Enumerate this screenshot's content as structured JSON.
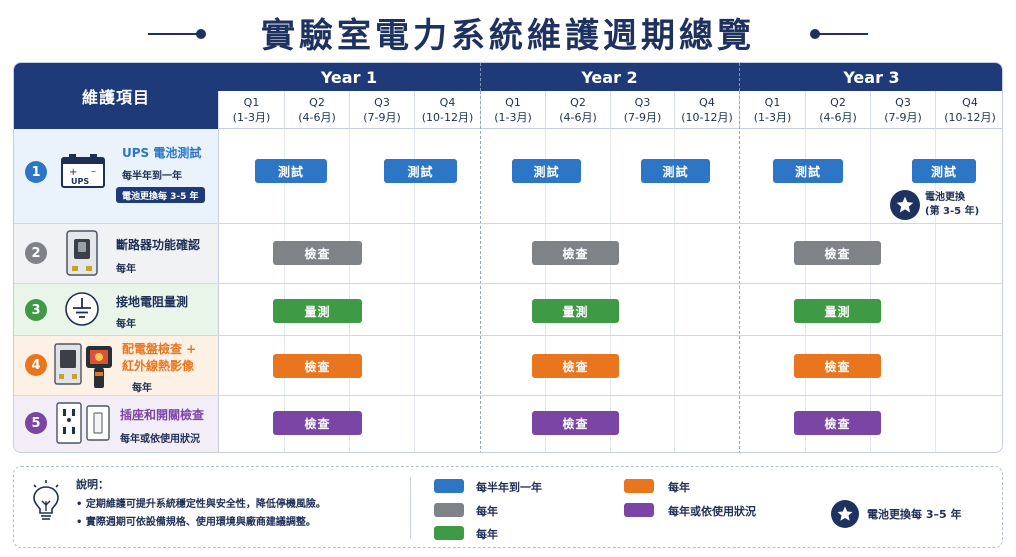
{
  "title": "實驗室電力系統維護週期總覽",
  "header": {
    "item_col": "維護項目",
    "years": [
      "Year 1",
      "Year 2",
      "Year 3"
    ],
    "quarters": [
      {
        "q": "Q1",
        "months": "(1-3月)"
      },
      {
        "q": "Q2",
        "months": "(4-6月)"
      },
      {
        "q": "Q3",
        "months": "(7-9月)"
      },
      {
        "q": "Q4",
        "months": "(10-12月)"
      }
    ]
  },
  "rows": [
    {
      "num": "1",
      "color": "#2d76c6",
      "title": "UPS 電池測試",
      "sub": "每半年到一年",
      "pill": "電池更換每 3-5 年",
      "icon": "ups-battery-icon",
      "ups_label": "UPS",
      "tasks": [
        "測試",
        "測試",
        "測試",
        "測試",
        "測試",
        "測試"
      ],
      "note_line1": "電池更換",
      "note_line2": "(第 3-5 年)"
    },
    {
      "num": "2",
      "color": "#7f8388",
      "title": "斷路器功能確認",
      "sub": "每年",
      "icon": "circuit-breaker-icon",
      "tasks": [
        "檢查",
        "檢查",
        "檢查"
      ]
    },
    {
      "num": "3",
      "color": "#3f9a45",
      "title": "接地電阻量測",
      "sub": "每年",
      "icon": "ground-icon",
      "tasks": [
        "量測",
        "量測",
        "量測"
      ]
    },
    {
      "num": "4",
      "color": "#e9761f",
      "title_line1": "配電盤檢查 +",
      "title_line2": "紅外線熱影像",
      "sub": "每年",
      "icon": "thermal-camera-icon",
      "tasks": [
        "檢查",
        "檢查",
        "檢查"
      ]
    },
    {
      "num": "5",
      "color": "#7b45a6",
      "title": "插座和開關檢查",
      "sub": "每年或依使用狀況",
      "icon": "outlet-switch-icon",
      "tasks": [
        "檢查",
        "檢查",
        "檢查"
      ]
    }
  ],
  "legend": {
    "title": "說明：",
    "bullets": [
      "• 定期維護可提升系統穩定性與安全性，降低停機風險。",
      "• 實際週期可依設備規格、使用環境與廠商建議調整。"
    ],
    "items": [
      {
        "label": "每半年到一年",
        "color": "#2d76c6"
      },
      {
        "label": "每年",
        "color": "#7f8388"
      },
      {
        "label": "每年",
        "color": "#3f9a45"
      },
      {
        "label": "每年",
        "color": "#e9761f"
      },
      {
        "label": "每年或依使用狀況",
        "color": "#7b45a6"
      }
    ],
    "star_label": "電池更換每 3–5 年",
    "icon": "lightbulb-icon"
  },
  "colors": {
    "navy": "#1e3a78",
    "row1_bg": "#eaf2fc",
    "row2_bg": "#f1f2f4",
    "row3_bg": "#eaf5ea",
    "row4_bg": "#fdf0e5",
    "row5_bg": "#f3edf8"
  }
}
